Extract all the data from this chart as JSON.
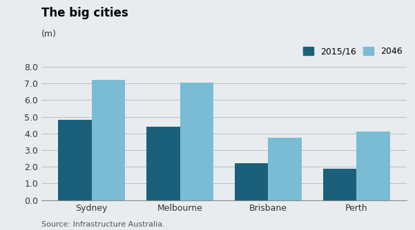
{
  "title": "The big cities",
  "subtitle": "(m)",
  "source": "Source: Infrastructure Australia.",
  "categories": [
    "Sydney",
    "Melbourne",
    "Brisbane",
    "Perth"
  ],
  "series": {
    "2015/16": [
      4.8,
      4.4,
      2.2,
      1.9
    ],
    "2046": [
      7.2,
      7.05,
      3.75,
      4.1
    ]
  },
  "color_2015": "#1b607a",
  "color_2046": "#7bbcd5",
  "background_color": "#e8ecee",
  "ylim": [
    0,
    8.0
  ],
  "yticks": [
    0.0,
    1.0,
    2.0,
    3.0,
    4.0,
    5.0,
    6.0,
    7.0,
    8.0
  ],
  "legend_labels": [
    "2015/16",
    "2046"
  ],
  "bar_width": 0.38,
  "title_fontsize": 12,
  "subtitle_fontsize": 9,
  "tick_fontsize": 9,
  "source_fontsize": 8
}
